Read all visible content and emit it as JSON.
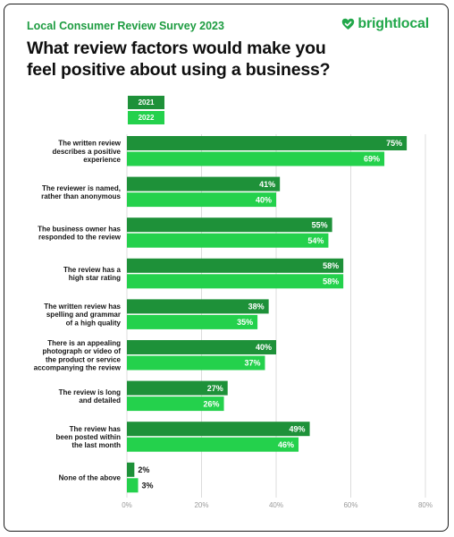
{
  "header": {
    "survey_label": "Local Consumer Review Survey 2023",
    "brand_name": "brightlocal",
    "brand_icon": "heart-check-icon",
    "title": "What review factors would make you feel positive about using a business?"
  },
  "colors": {
    "series_2021": "#1e9139",
    "series_2022": "#24d14c",
    "brand": "#21a74a",
    "grid": "#dcdcdc"
  },
  "chart_data": {
    "type": "bar",
    "orientation": "horizontal",
    "categories": [
      [
        "The written review",
        "describes a positive",
        "experience"
      ],
      [
        "The reviewer is named,",
        "rather than anonymous"
      ],
      [
        "The business owner has",
        "responded to the review"
      ],
      [
        "The review has a",
        "high star rating"
      ],
      [
        "The written review has",
        "spelling and grammar",
        "of a high quality"
      ],
      [
        "There is an appealing",
        "photograph or video of",
        "the product or service",
        "accompanying the review"
      ],
      [
        "The review is long",
        "and detailed"
      ],
      [
        "The review has",
        "been posted within",
        "the last month"
      ],
      [
        "None of the above"
      ]
    ],
    "series": [
      {
        "name": "2021",
        "values": [
          75,
          41,
          55,
          58,
          38,
          40,
          27,
          49,
          2
        ]
      },
      {
        "name": "2022",
        "values": [
          69,
          40,
          54,
          58,
          35,
          37,
          26,
          46,
          3
        ]
      }
    ],
    "value_labels": {
      "2021": [
        "75%",
        "41%",
        "55%",
        "58%",
        "38%",
        "40%",
        "27%",
        "49%",
        "2%"
      ],
      "2022": [
        "69%",
        "40%",
        "54%",
        "58%",
        "35%",
        "37%",
        "26%",
        "46%",
        "3%"
      ]
    },
    "xlim": [
      0,
      80
    ],
    "xticks": [
      0,
      20,
      40,
      60,
      80
    ],
    "xtick_labels": [
      "0%",
      "20%",
      "40%",
      "60%",
      "80%"
    ],
    "grid": true,
    "legend_position": "top-left"
  }
}
